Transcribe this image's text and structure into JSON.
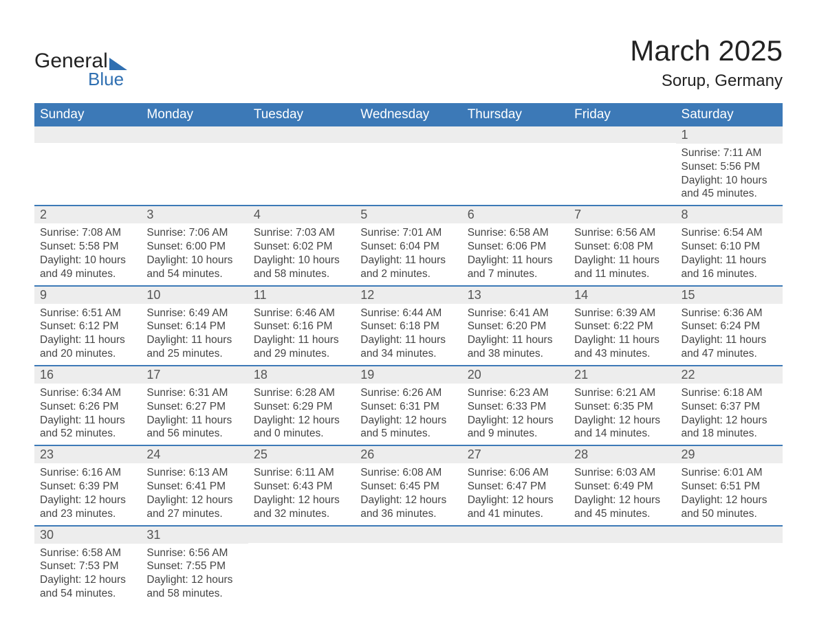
{
  "brand": {
    "name_part1": "General",
    "name_part2": "Blue"
  },
  "title": "March 2025",
  "location": "Sorup, Germany",
  "colors": {
    "header_bg": "#3c79b7",
    "header_text": "#ffffff",
    "daynum_bg": "#ededed",
    "row_border": "#3c79b7",
    "body_text": "#444444",
    "title_text": "#222222",
    "brand_blue": "#2f6fb1",
    "page_bg": "#ffffff"
  },
  "typography": {
    "title_fontsize": 42,
    "location_fontsize": 24,
    "weekday_fontsize": 19,
    "daynum_fontsize": 18,
    "body_fontsize": 15.5
  },
  "weekdays": [
    "Sunday",
    "Monday",
    "Tuesday",
    "Wednesday",
    "Thursday",
    "Friday",
    "Saturday"
  ],
  "weeks": [
    [
      {
        "day": "",
        "sunrise": "",
        "sunset": "",
        "daylight": ""
      },
      {
        "day": "",
        "sunrise": "",
        "sunset": "",
        "daylight": ""
      },
      {
        "day": "",
        "sunrise": "",
        "sunset": "",
        "daylight": ""
      },
      {
        "day": "",
        "sunrise": "",
        "sunset": "",
        "daylight": ""
      },
      {
        "day": "",
        "sunrise": "",
        "sunset": "",
        "daylight": ""
      },
      {
        "day": "",
        "sunrise": "",
        "sunset": "",
        "daylight": ""
      },
      {
        "day": "1",
        "sunrise": "Sunrise: 7:11 AM",
        "sunset": "Sunset: 5:56 PM",
        "daylight": "Daylight: 10 hours and 45 minutes."
      }
    ],
    [
      {
        "day": "2",
        "sunrise": "Sunrise: 7:08 AM",
        "sunset": "Sunset: 5:58 PM",
        "daylight": "Daylight: 10 hours and 49 minutes."
      },
      {
        "day": "3",
        "sunrise": "Sunrise: 7:06 AM",
        "sunset": "Sunset: 6:00 PM",
        "daylight": "Daylight: 10 hours and 54 minutes."
      },
      {
        "day": "4",
        "sunrise": "Sunrise: 7:03 AM",
        "sunset": "Sunset: 6:02 PM",
        "daylight": "Daylight: 10 hours and 58 minutes."
      },
      {
        "day": "5",
        "sunrise": "Sunrise: 7:01 AM",
        "sunset": "Sunset: 6:04 PM",
        "daylight": "Daylight: 11 hours and 2 minutes."
      },
      {
        "day": "6",
        "sunrise": "Sunrise: 6:58 AM",
        "sunset": "Sunset: 6:06 PM",
        "daylight": "Daylight: 11 hours and 7 minutes."
      },
      {
        "day": "7",
        "sunrise": "Sunrise: 6:56 AM",
        "sunset": "Sunset: 6:08 PM",
        "daylight": "Daylight: 11 hours and 11 minutes."
      },
      {
        "day": "8",
        "sunrise": "Sunrise: 6:54 AM",
        "sunset": "Sunset: 6:10 PM",
        "daylight": "Daylight: 11 hours and 16 minutes."
      }
    ],
    [
      {
        "day": "9",
        "sunrise": "Sunrise: 6:51 AM",
        "sunset": "Sunset: 6:12 PM",
        "daylight": "Daylight: 11 hours and 20 minutes."
      },
      {
        "day": "10",
        "sunrise": "Sunrise: 6:49 AM",
        "sunset": "Sunset: 6:14 PM",
        "daylight": "Daylight: 11 hours and 25 minutes."
      },
      {
        "day": "11",
        "sunrise": "Sunrise: 6:46 AM",
        "sunset": "Sunset: 6:16 PM",
        "daylight": "Daylight: 11 hours and 29 minutes."
      },
      {
        "day": "12",
        "sunrise": "Sunrise: 6:44 AM",
        "sunset": "Sunset: 6:18 PM",
        "daylight": "Daylight: 11 hours and 34 minutes."
      },
      {
        "day": "13",
        "sunrise": "Sunrise: 6:41 AM",
        "sunset": "Sunset: 6:20 PM",
        "daylight": "Daylight: 11 hours and 38 minutes."
      },
      {
        "day": "14",
        "sunrise": "Sunrise: 6:39 AM",
        "sunset": "Sunset: 6:22 PM",
        "daylight": "Daylight: 11 hours and 43 minutes."
      },
      {
        "day": "15",
        "sunrise": "Sunrise: 6:36 AM",
        "sunset": "Sunset: 6:24 PM",
        "daylight": "Daylight: 11 hours and 47 minutes."
      }
    ],
    [
      {
        "day": "16",
        "sunrise": "Sunrise: 6:34 AM",
        "sunset": "Sunset: 6:26 PM",
        "daylight": "Daylight: 11 hours and 52 minutes."
      },
      {
        "day": "17",
        "sunrise": "Sunrise: 6:31 AM",
        "sunset": "Sunset: 6:27 PM",
        "daylight": "Daylight: 11 hours and 56 minutes."
      },
      {
        "day": "18",
        "sunrise": "Sunrise: 6:28 AM",
        "sunset": "Sunset: 6:29 PM",
        "daylight": "Daylight: 12 hours and 0 minutes."
      },
      {
        "day": "19",
        "sunrise": "Sunrise: 6:26 AM",
        "sunset": "Sunset: 6:31 PM",
        "daylight": "Daylight: 12 hours and 5 minutes."
      },
      {
        "day": "20",
        "sunrise": "Sunrise: 6:23 AM",
        "sunset": "Sunset: 6:33 PM",
        "daylight": "Daylight: 12 hours and 9 minutes."
      },
      {
        "day": "21",
        "sunrise": "Sunrise: 6:21 AM",
        "sunset": "Sunset: 6:35 PM",
        "daylight": "Daylight: 12 hours and 14 minutes."
      },
      {
        "day": "22",
        "sunrise": "Sunrise: 6:18 AM",
        "sunset": "Sunset: 6:37 PM",
        "daylight": "Daylight: 12 hours and 18 minutes."
      }
    ],
    [
      {
        "day": "23",
        "sunrise": "Sunrise: 6:16 AM",
        "sunset": "Sunset: 6:39 PM",
        "daylight": "Daylight: 12 hours and 23 minutes."
      },
      {
        "day": "24",
        "sunrise": "Sunrise: 6:13 AM",
        "sunset": "Sunset: 6:41 PM",
        "daylight": "Daylight: 12 hours and 27 minutes."
      },
      {
        "day": "25",
        "sunrise": "Sunrise: 6:11 AM",
        "sunset": "Sunset: 6:43 PM",
        "daylight": "Daylight: 12 hours and 32 minutes."
      },
      {
        "day": "26",
        "sunrise": "Sunrise: 6:08 AM",
        "sunset": "Sunset: 6:45 PM",
        "daylight": "Daylight: 12 hours and 36 minutes."
      },
      {
        "day": "27",
        "sunrise": "Sunrise: 6:06 AM",
        "sunset": "Sunset: 6:47 PM",
        "daylight": "Daylight: 12 hours and 41 minutes."
      },
      {
        "day": "28",
        "sunrise": "Sunrise: 6:03 AM",
        "sunset": "Sunset: 6:49 PM",
        "daylight": "Daylight: 12 hours and 45 minutes."
      },
      {
        "day": "29",
        "sunrise": "Sunrise: 6:01 AM",
        "sunset": "Sunset: 6:51 PM",
        "daylight": "Daylight: 12 hours and 50 minutes."
      }
    ],
    [
      {
        "day": "30",
        "sunrise": "Sunrise: 6:58 AM",
        "sunset": "Sunset: 7:53 PM",
        "daylight": "Daylight: 12 hours and 54 minutes."
      },
      {
        "day": "31",
        "sunrise": "Sunrise: 6:56 AM",
        "sunset": "Sunset: 7:55 PM",
        "daylight": "Daylight: 12 hours and 58 minutes."
      },
      {
        "day": "",
        "sunrise": "",
        "sunset": "",
        "daylight": ""
      },
      {
        "day": "",
        "sunrise": "",
        "sunset": "",
        "daylight": ""
      },
      {
        "day": "",
        "sunrise": "",
        "sunset": "",
        "daylight": ""
      },
      {
        "day": "",
        "sunrise": "",
        "sunset": "",
        "daylight": ""
      },
      {
        "day": "",
        "sunrise": "",
        "sunset": "",
        "daylight": ""
      }
    ]
  ]
}
